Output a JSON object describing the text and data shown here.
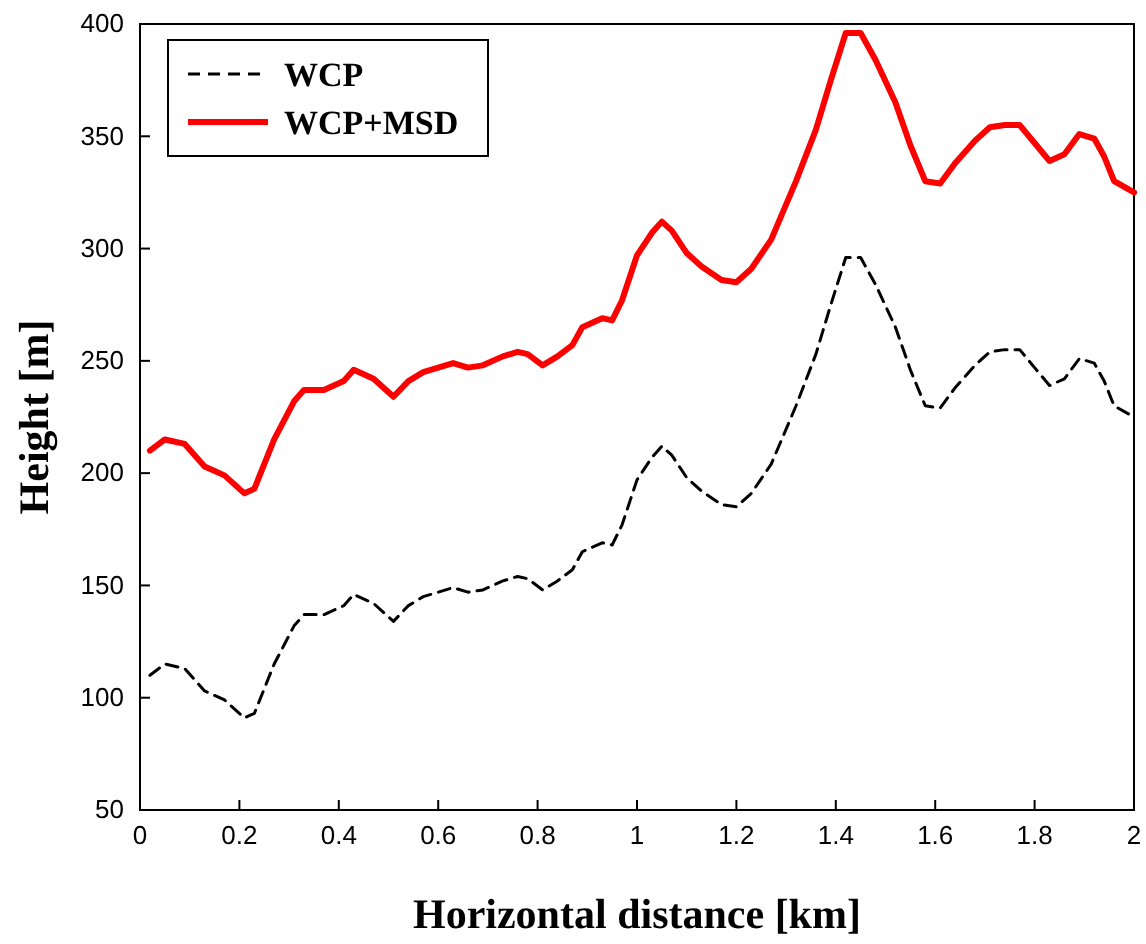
{
  "chart_data": {
    "type": "line",
    "xlabel": "Horizontal distance [km]",
    "ylabel": "Height [m]",
    "xlim": [
      0,
      2
    ],
    "ylim": [
      50,
      400
    ],
    "xticks": [
      {
        "value": 0,
        "label": "0"
      },
      {
        "value": 0.2,
        "label": "0.2"
      },
      {
        "value": 0.4,
        "label": "0.4"
      },
      {
        "value": 0.6,
        "label": "0.6"
      },
      {
        "value": 0.8,
        "label": "0.8"
      },
      {
        "value": 1,
        "label": "1"
      },
      {
        "value": 1.2,
        "label": "1.2"
      },
      {
        "value": 1.4,
        "label": "1.4"
      },
      {
        "value": 1.6,
        "label": "1.6"
      },
      {
        "value": 1.8,
        "label": "1.8"
      },
      {
        "value": 2,
        "label": "2"
      }
    ],
    "yticks": [
      50,
      100,
      150,
      200,
      250,
      300,
      350,
      400
    ],
    "x": [
      0.02,
      0.05,
      0.09,
      0.13,
      0.17,
      0.21,
      0.23,
      0.27,
      0.31,
      0.33,
      0.37,
      0.41,
      0.43,
      0.47,
      0.51,
      0.54,
      0.57,
      0.63,
      0.66,
      0.69,
      0.73,
      0.76,
      0.78,
      0.81,
      0.84,
      0.87,
      0.89,
      0.93,
      0.95,
      0.97,
      1.0,
      1.03,
      1.05,
      1.07,
      1.1,
      1.13,
      1.17,
      1.2,
      1.23,
      1.27,
      1.32,
      1.36,
      1.39,
      1.42,
      1.45,
      1.48,
      1.52,
      1.55,
      1.58,
      1.61,
      1.64,
      1.68,
      1.71,
      1.74,
      1.77,
      1.8,
      1.83,
      1.86,
      1.89,
      1.92,
      1.94,
      1.96,
      2.0
    ],
    "grid": false,
    "legend": "top left",
    "series": [
      {
        "name": "WCP",
        "color": "#000000",
        "line_style": "dashed",
        "values": [
          110,
          115,
          113,
          103,
          99,
          91,
          93,
          115,
          132,
          137,
          137,
          141,
          146,
          142,
          134,
          141,
          145,
          149,
          147,
          148,
          152,
          154,
          153,
          148,
          152,
          157,
          165,
          169,
          168,
          177,
          197,
          207,
          212,
          208,
          198,
          192,
          186,
          185,
          191,
          204,
          230,
          253,
          275,
          296,
          296,
          284,
          265,
          246,
          230,
          229,
          238,
          248,
          254,
          255,
          255,
          247,
          239,
          242,
          251,
          249,
          241,
          230,
          225
        ]
      },
      {
        "name": "WCP+MSD",
        "color": "#ff0000",
        "line_style": "solid",
        "values": [
          210,
          215,
          213,
          203,
          199,
          191,
          193,
          215,
          232,
          237,
          237,
          241,
          246,
          242,
          234,
          241,
          245,
          249,
          247,
          248,
          252,
          254,
          253,
          248,
          252,
          257,
          265,
          269,
          268,
          277,
          297,
          307,
          312,
          308,
          298,
          292,
          286,
          285,
          291,
          304,
          330,
          353,
          375,
          396,
          396,
          384,
          365,
          346,
          330,
          329,
          338,
          348,
          354,
          355,
          355,
          347,
          339,
          342,
          351,
          349,
          341,
          330,
          325
        ]
      }
    ]
  }
}
